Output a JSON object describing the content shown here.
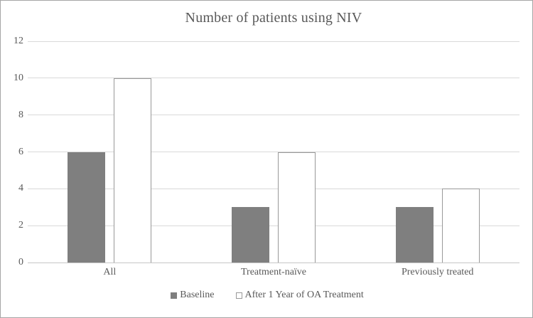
{
  "chart_data": {
    "type": "bar",
    "title": "Number of patients using NIV",
    "categories": [
      "All",
      "Treatment-naïve",
      "Previously treated"
    ],
    "series": [
      {
        "name": "Baseline",
        "values": [
          6,
          3,
          3
        ],
        "fill": "#7f7f7f",
        "border": "#7f7f7f"
      },
      {
        "name": "After 1 Year of OA Treatment",
        "values": [
          10,
          6,
          4
        ],
        "fill": "#ffffff",
        "border": "#999999"
      }
    ],
    "xlabel": "",
    "ylabel": "",
    "ylim": [
      0,
      12
    ],
    "ytick_step": 2,
    "yticks": [
      0,
      2,
      4,
      6,
      8,
      10,
      12
    ],
    "grid": true,
    "legend_position": "bottom",
    "colors": {
      "title_text": "#595959",
      "axis_text": "#595959",
      "gridline": "#d9d9d9",
      "axis_line": "#c6c6c6",
      "frame_border": "#a6a6a6"
    }
  }
}
